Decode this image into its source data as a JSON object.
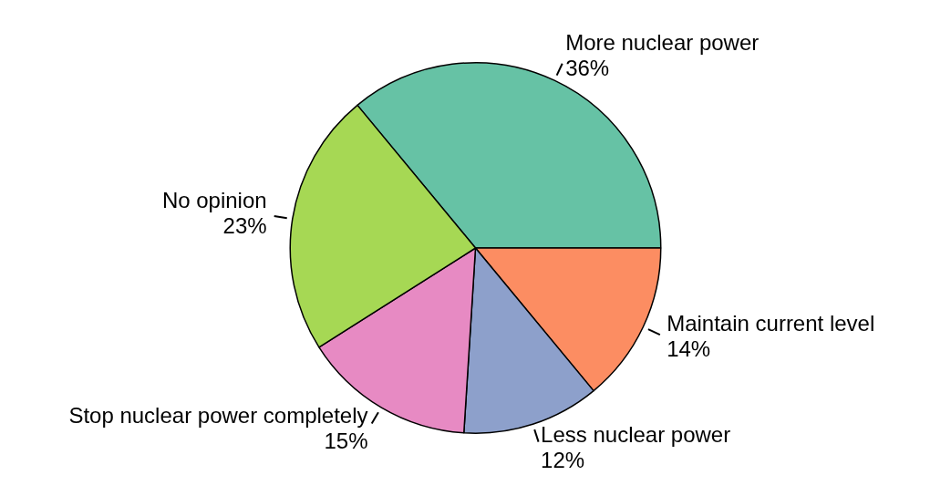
{
  "chart_data": {
    "type": "pie",
    "categories": [
      "More nuclear power",
      "Maintain current level",
      "Less nuclear power",
      "Stop nuclear power completely",
      "No opinion"
    ],
    "values": [
      36,
      14,
      12,
      15,
      23
    ],
    "colors": [
      "#66c2a5",
      "#fc8d62",
      "#8da0cb",
      "#e78ac3",
      "#a6d854"
    ],
    "value_labels": [
      "36%",
      "14%",
      "12%",
      "15%",
      "23%"
    ],
    "legend": false
  }
}
